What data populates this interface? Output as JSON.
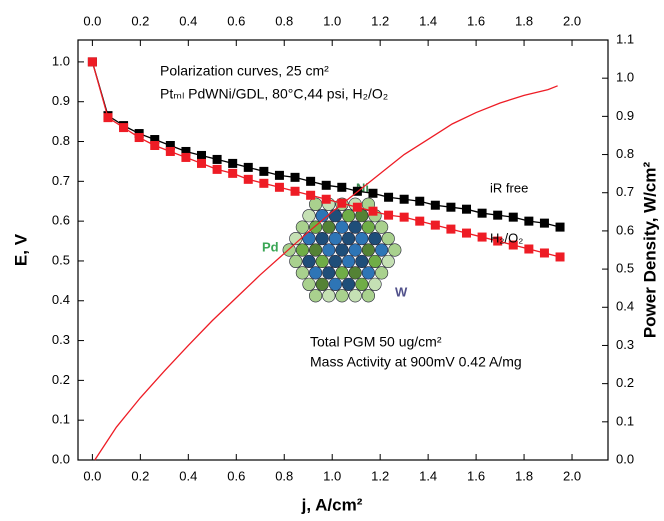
{
  "chart_data": {
    "type": "line",
    "xlabel": "j, A/cm²",
    "ylabel": "E, V",
    "y2label": "Power Density, W/cm²",
    "annotations": [
      "Polarization curves, 25 cm²",
      "Ptₘₗ PdWNi/GDL, 80°C,44 psi, H₂/O₂",
      "Total PGM 50 ug/cm²",
      "Mass Activity at 900mV 0.42 A/mg",
      "Pd",
      "Ni",
      "W"
    ],
    "xlim": [
      -0.06,
      2.15
    ],
    "ylim": [
      0,
      1.055
    ],
    "y2lim": [
      0,
      1.1
    ],
    "xticks": [
      {
        "value": 0,
        "label": "0.0"
      },
      0.2,
      0.4,
      0.6,
      0.8,
      {
        "value": 1,
        "label": "1.0"
      },
      1.2,
      1.4,
      1.6,
      1.8,
      {
        "value": 2,
        "label": "2.0"
      }
    ],
    "yticks": [
      {
        "value": 0,
        "label": "0.0"
      },
      0.1,
      0.2,
      0.3,
      0.4,
      0.5,
      0.6,
      0.7,
      0.8,
      0.9,
      {
        "value": 1,
        "label": "1.0"
      }
    ],
    "y2ticks": [
      {
        "value": 0,
        "label": "0.0"
      },
      0.1,
      0.2,
      0.3,
      0.4,
      0.5,
      0.6,
      0.7,
      0.8,
      0.9,
      {
        "value": 1,
        "label": "1.0"
      },
      1.1
    ],
    "series": [
      {
        "name": "iR free",
        "color": "#000000",
        "marker": "square",
        "x": [
          0,
          0.065,
          0.13,
          0.195,
          0.26,
          0.325,
          0.39,
          0.455,
          0.52,
          0.585,
          0.65,
          0.715,
          0.78,
          0.845,
          0.91,
          0.975,
          1.04,
          1.105,
          1.17,
          1.235,
          1.3,
          1.365,
          1.43,
          1.495,
          1.56,
          1.625,
          1.69,
          1.755,
          1.82,
          1.885,
          1.95
        ],
        "values": [
          1.0,
          0.865,
          0.84,
          0.82,
          0.805,
          0.79,
          0.775,
          0.765,
          0.755,
          0.745,
          0.735,
          0.725,
          0.715,
          0.71,
          0.7,
          0.69,
          0.685,
          0.675,
          0.67,
          0.66,
          0.655,
          0.65,
          0.64,
          0.635,
          0.63,
          0.62,
          0.615,
          0.61,
          0.6,
          0.595,
          0.585
        ]
      },
      {
        "name": "H₂/O₂",
        "color": "#ee1c25",
        "marker": "square",
        "x": [
          0,
          0.065,
          0.13,
          0.195,
          0.26,
          0.325,
          0.39,
          0.455,
          0.52,
          0.585,
          0.65,
          0.715,
          0.78,
          0.845,
          0.91,
          0.975,
          1.04,
          1.105,
          1.17,
          1.235,
          1.3,
          1.365,
          1.43,
          1.495,
          1.56,
          1.625,
          1.69,
          1.755,
          1.82,
          1.885,
          1.95
        ],
        "values": [
          1.0,
          0.86,
          0.835,
          0.81,
          0.79,
          0.775,
          0.76,
          0.745,
          0.73,
          0.72,
          0.705,
          0.695,
          0.685,
          0.675,
          0.665,
          0.655,
          0.645,
          0.635,
          0.625,
          0.615,
          0.61,
          0.6,
          0.59,
          0.58,
          0.57,
          0.56,
          0.55,
          0.54,
          0.53,
          0.52,
          0.51
        ]
      },
      {
        "color": "#ee1c25",
        "axis": "y2",
        "marker": "none",
        "x": [
          0.01,
          0.1,
          0.2,
          0.3,
          0.4,
          0.5,
          0.6,
          0.7,
          0.8,
          0.9,
          1.0,
          1.1,
          1.2,
          1.3,
          1.4,
          1.5,
          1.6,
          1.7,
          1.8,
          1.9,
          1.94
        ],
        "values": [
          0,
          0.086,
          0.163,
          0.233,
          0.3,
          0.365,
          0.425,
          0.485,
          0.541,
          0.597,
          0.65,
          0.7,
          0.75,
          0.8,
          0.84,
          0.88,
          0.91,
          0.935,
          0.955,
          0.97,
          0.98
        ]
      }
    ]
  }
}
